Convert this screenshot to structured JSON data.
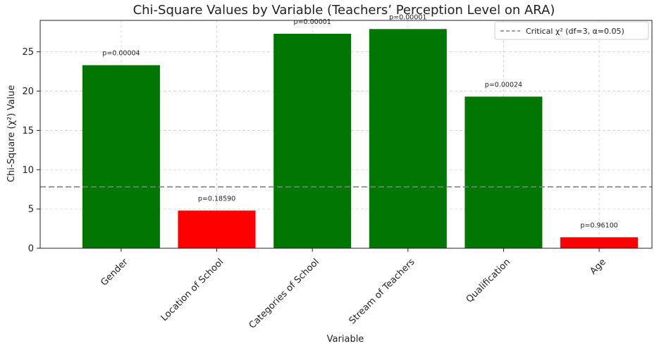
{
  "chart_data": {
    "type": "bar",
    "title": "Chi-Square Values by Variable (Teachers’ Perception Level on ARA)",
    "xlabel": "Variable",
    "ylabel": "Chi-Square (χ²) Value",
    "categories": [
      "Gender",
      "Location of School",
      "Categories of School",
      "Stream of Teachers",
      "Qualification",
      "Age"
    ],
    "values": [
      23.3,
      4.8,
      27.3,
      27.9,
      19.3,
      1.4
    ],
    "p_labels": [
      "p=0.00004",
      "p=0.18590",
      "p=0.00001",
      "p=0.00001",
      "p=0.00024",
      "p=0.96100"
    ],
    "colors": [
      "#007700",
      "#ff0000",
      "#007700",
      "#007700",
      "#007700",
      "#ff0000"
    ],
    "ylim": [
      0,
      29
    ],
    "yticks": [
      0,
      5,
      10,
      15,
      20,
      25
    ],
    "reference_line": {
      "value": 7.815,
      "label": "Critical χ² (df=3, α=0.05)",
      "style": "dashed",
      "color": "#808080"
    },
    "legend": {
      "position": "top-right",
      "entries": [
        "Critical χ² (df=3, α=0.05)"
      ]
    },
    "grid": true
  }
}
